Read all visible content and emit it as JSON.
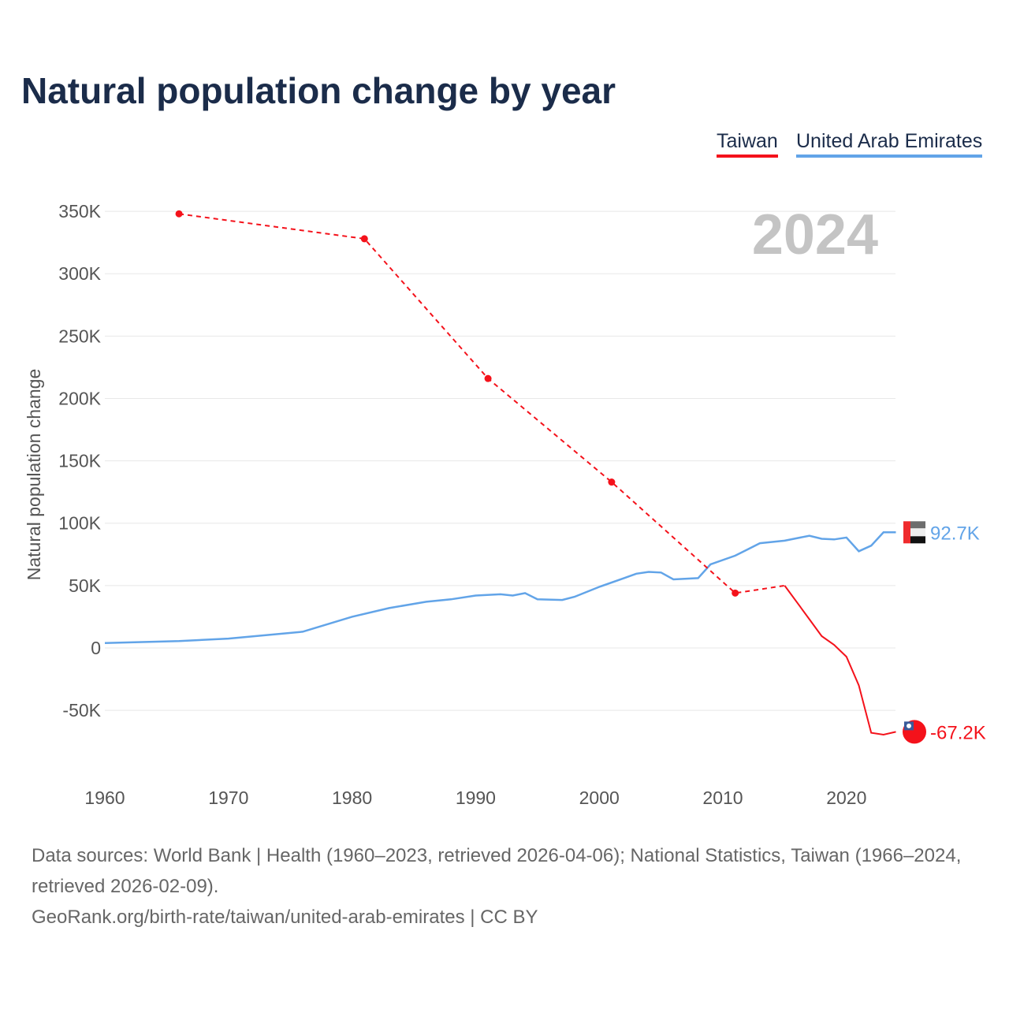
{
  "title": "Natural population change by year",
  "legend": [
    {
      "label": "Taiwan",
      "color": "#f4121b"
    },
    {
      "label": "United Arab Emirates",
      "color": "#62a4e8"
    }
  ],
  "chart_data": {
    "type": "line",
    "title": "Natural population change by year",
    "ylabel": "Natural population change",
    "xlabel": "",
    "year_label": "2024",
    "xlim": [
      1960,
      2024
    ],
    "ylim": [
      -85000,
      350000
    ],
    "x_ticks": [
      "1960",
      "1970",
      "1980",
      "1990",
      "2000",
      "2010",
      "2020"
    ],
    "y_ticks": [
      {
        "v": 350000,
        "l": "350K"
      },
      {
        "v": 300000,
        "l": "300K"
      },
      {
        "v": 250000,
        "l": "250K"
      },
      {
        "v": 200000,
        "l": "200K"
      },
      {
        "v": 150000,
        "l": "150K"
      },
      {
        "v": 100000,
        "l": "100K"
      },
      {
        "v": 50000,
        "l": "50K"
      },
      {
        "v": 0,
        "l": "0"
      },
      {
        "v": -50000,
        "l": "-50K"
      }
    ],
    "grid": true,
    "series": [
      {
        "name": "Taiwan",
        "color": "#f4121b",
        "end_label": "-67.2K",
        "sparse_points": [
          [
            1966,
            348000
          ],
          [
            1981,
            328000
          ],
          [
            1991,
            216000
          ],
          [
            2001,
            133000
          ],
          [
            2011,
            44000
          ],
          [
            2015,
            50000
          ]
        ],
        "annual_points": [
          [
            2015,
            50000
          ],
          [
            2016,
            36500
          ],
          [
            2017,
            23000
          ],
          [
            2018,
            9500
          ],
          [
            2019,
            2500
          ],
          [
            2020,
            -7000
          ],
          [
            2021,
            -30000
          ],
          [
            2022,
            -68000
          ],
          [
            2023,
            -69500
          ],
          [
            2024,
            -67200
          ]
        ]
      },
      {
        "name": "United Arab Emirates",
        "color": "#62a4e8",
        "end_label": "92.7K",
        "points": [
          [
            1960,
            4000
          ],
          [
            1966,
            5500
          ],
          [
            1970,
            7500
          ],
          [
            1976,
            13000
          ],
          [
            1980,
            25000
          ],
          [
            1983,
            32000
          ],
          [
            1986,
            37000
          ],
          [
            1988,
            39000
          ],
          [
            1990,
            42000
          ],
          [
            1992,
            43000
          ],
          [
            1993,
            42000
          ],
          [
            1994,
            44000
          ],
          [
            1995,
            39000
          ],
          [
            1997,
            38500
          ],
          [
            1998,
            41000
          ],
          [
            2000,
            49000
          ],
          [
            2002,
            56000
          ],
          [
            2003,
            59500
          ],
          [
            2004,
            61000
          ],
          [
            2005,
            60500
          ],
          [
            2006,
            55000
          ],
          [
            2008,
            56000
          ],
          [
            2009,
            67000
          ],
          [
            2011,
            74000
          ],
          [
            2012,
            79000
          ],
          [
            2013,
            84000
          ],
          [
            2015,
            86000
          ],
          [
            2017,
            90000
          ],
          [
            2018,
            87500
          ],
          [
            2019,
            87000
          ],
          [
            2020,
            88500
          ],
          [
            2021,
            77500
          ],
          [
            2022,
            82000
          ],
          [
            2023,
            92700
          ],
          [
            2024,
            92700
          ]
        ]
      }
    ]
  },
  "footer": {
    "sources": "Data sources: World Bank | Health (1960–2023, retrieved 2026-04-06); National Statistics, Taiwan (1966–2024, retrieved 2026-02-09).",
    "link": "GeoRank.org/birth-rate/taiwan/united-arab-emirates | CC BY"
  }
}
